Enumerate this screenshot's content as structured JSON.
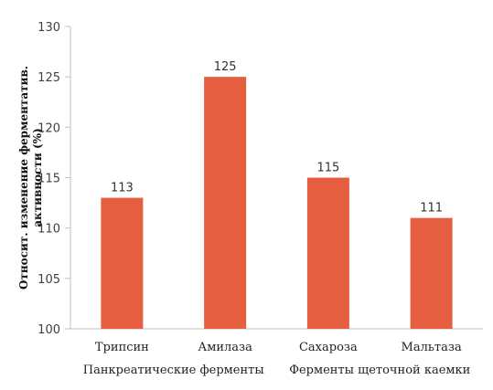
{
  "chart_data": {
    "type": "bar",
    "categories": [
      "Трипсин",
      "Амилаза",
      "Сахароза",
      "Мальтаза"
    ],
    "values": [
      113,
      125,
      115,
      111
    ],
    "data_labels": [
      "113",
      "125",
      "115",
      "111"
    ],
    "groups": [
      {
        "label": "Панкреатические ферменты",
        "categories": [
          "Трипсин",
          "Амилаза"
        ]
      },
      {
        "label": "Ферменты щеточной каемки",
        "categories": [
          "Сахароза",
          "Мальтаза"
        ]
      }
    ],
    "ylabel_lines": [
      "Относит. изменение ферментатив.",
      "активности (%)"
    ],
    "xlabel": "",
    "title": "",
    "ylim": [
      100,
      130
    ],
    "yticks": [
      100,
      105,
      110,
      115,
      120,
      125,
      130
    ],
    "bar_color": "#E55E3F",
    "grid": false
  }
}
